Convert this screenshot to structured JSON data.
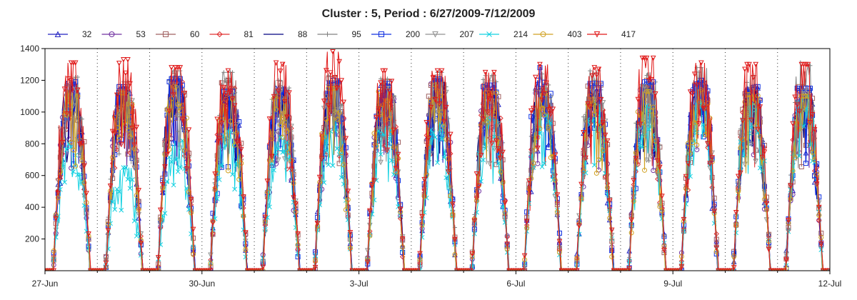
{
  "chart_data": {
    "type": "line",
    "title": "Cluster : 5, Period : 6/27/2009-7/12/2009",
    "xlabel": "",
    "ylabel": "",
    "x_ticks": [
      "27-Jun",
      "30-Jun",
      "3-Jul",
      "6-Jul",
      "9-Jul",
      "12-Jul"
    ],
    "x_start": "2009-06-27",
    "x_end": "2009-07-12",
    "ylim": [
      0,
      1400
    ],
    "y_ticks": [
      200,
      400,
      600,
      800,
      1000,
      1200,
      1400
    ],
    "grid": "vertical-dotted-daily",
    "legend_position": "top",
    "days": [
      "6/27",
      "6/28",
      "6/29",
      "6/30",
      "7/1",
      "7/2",
      "7/3",
      "7/4",
      "7/5",
      "7/6",
      "7/7",
      "7/8",
      "7/9",
      "7/10",
      "7/11"
    ],
    "series": [
      {
        "name": "32",
        "color": "#2020c0",
        "marker": "triangle-up",
        "daily_peak": [
          1180,
          1150,
          1200,
          1120,
          1150,
          1190,
          1170,
          1200,
          1160,
          1150,
          1140,
          1170,
          1180,
          1150,
          1140
        ]
      },
      {
        "name": "53",
        "color": "#7030a0",
        "marker": "circle",
        "daily_peak": [
          1150,
          1130,
          1170,
          1100,
          1120,
          1160,
          1140,
          1180,
          1130,
          1130,
          1110,
          1140,
          1150,
          1120,
          1110
        ]
      },
      {
        "name": "60",
        "color": "#a06060",
        "marker": "square",
        "daily_peak": [
          1200,
          1160,
          1230,
          1200,
          1180,
          1210,
          1190,
          1220,
          1170,
          1160,
          1170,
          1200,
          1200,
          1180,
          1160
        ]
      },
      {
        "name": "81",
        "color": "#e03030",
        "marker": "diamond",
        "daily_peak": [
          1170,
          1140,
          1190,
          1150,
          1140,
          1180,
          1160,
          1200,
          1150,
          1140,
          1130,
          1160,
          1170,
          1140,
          1130
        ]
      },
      {
        "name": "88",
        "color": "#000080",
        "marker": "none",
        "daily_peak": [
          1160,
          1140,
          1180,
          1110,
          1130,
          1170,
          1150,
          1190,
          1140,
          1140,
          1120,
          1150,
          1160,
          1130,
          1120
        ]
      },
      {
        "name": "95",
        "color": "#808080",
        "marker": "plus",
        "daily_peak": [
          1220,
          1190,
          1260,
          1250,
          1200,
          1230,
          1210,
          1250,
          1230,
          1240,
          1260,
          1250,
          1280,
          1230,
          1330
        ]
      },
      {
        "name": "200",
        "color": "#1030e0",
        "marker": "square",
        "daily_peak": [
          1190,
          1160,
          1210,
          1130,
          1160,
          1200,
          1180,
          1210,
          1170,
          1280,
          1180,
          1190,
          1200,
          1160,
          1150
        ]
      },
      {
        "name": "207",
        "color": "#909090",
        "marker": "triangle-down",
        "daily_peak": [
          1160,
          1130,
          1170,
          1110,
          1130,
          1160,
          1150,
          1190,
          1150,
          1140,
          1130,
          1160,
          1170,
          1150,
          1130
        ]
      },
      {
        "name": "214",
        "color": "#10d0e0",
        "marker": "x",
        "daily_peak": [
          800,
          650,
          820,
          880,
          840,
          950,
          900,
          930,
          960,
          1000,
          1050,
          1040,
          1060,
          1050,
          1100
        ]
      },
      {
        "name": "403",
        "color": "#d0a020",
        "marker": "circle",
        "daily_peak": [
          1140,
          1120,
          1160,
          1080,
          1100,
          1150,
          1130,
          1170,
          1120,
          1120,
          1100,
          1130,
          1140,
          1110,
          1100
        ]
      },
      {
        "name": "417",
        "color": "#e01818",
        "marker": "triangle-down",
        "daily_peak": [
          1310,
          1330,
          1280,
          1260,
          1310,
          1380,
          1260,
          1260,
          1250,
          1300,
          1280,
          1340,
          1310,
          1300,
          1300
        ]
      }
    ]
  }
}
